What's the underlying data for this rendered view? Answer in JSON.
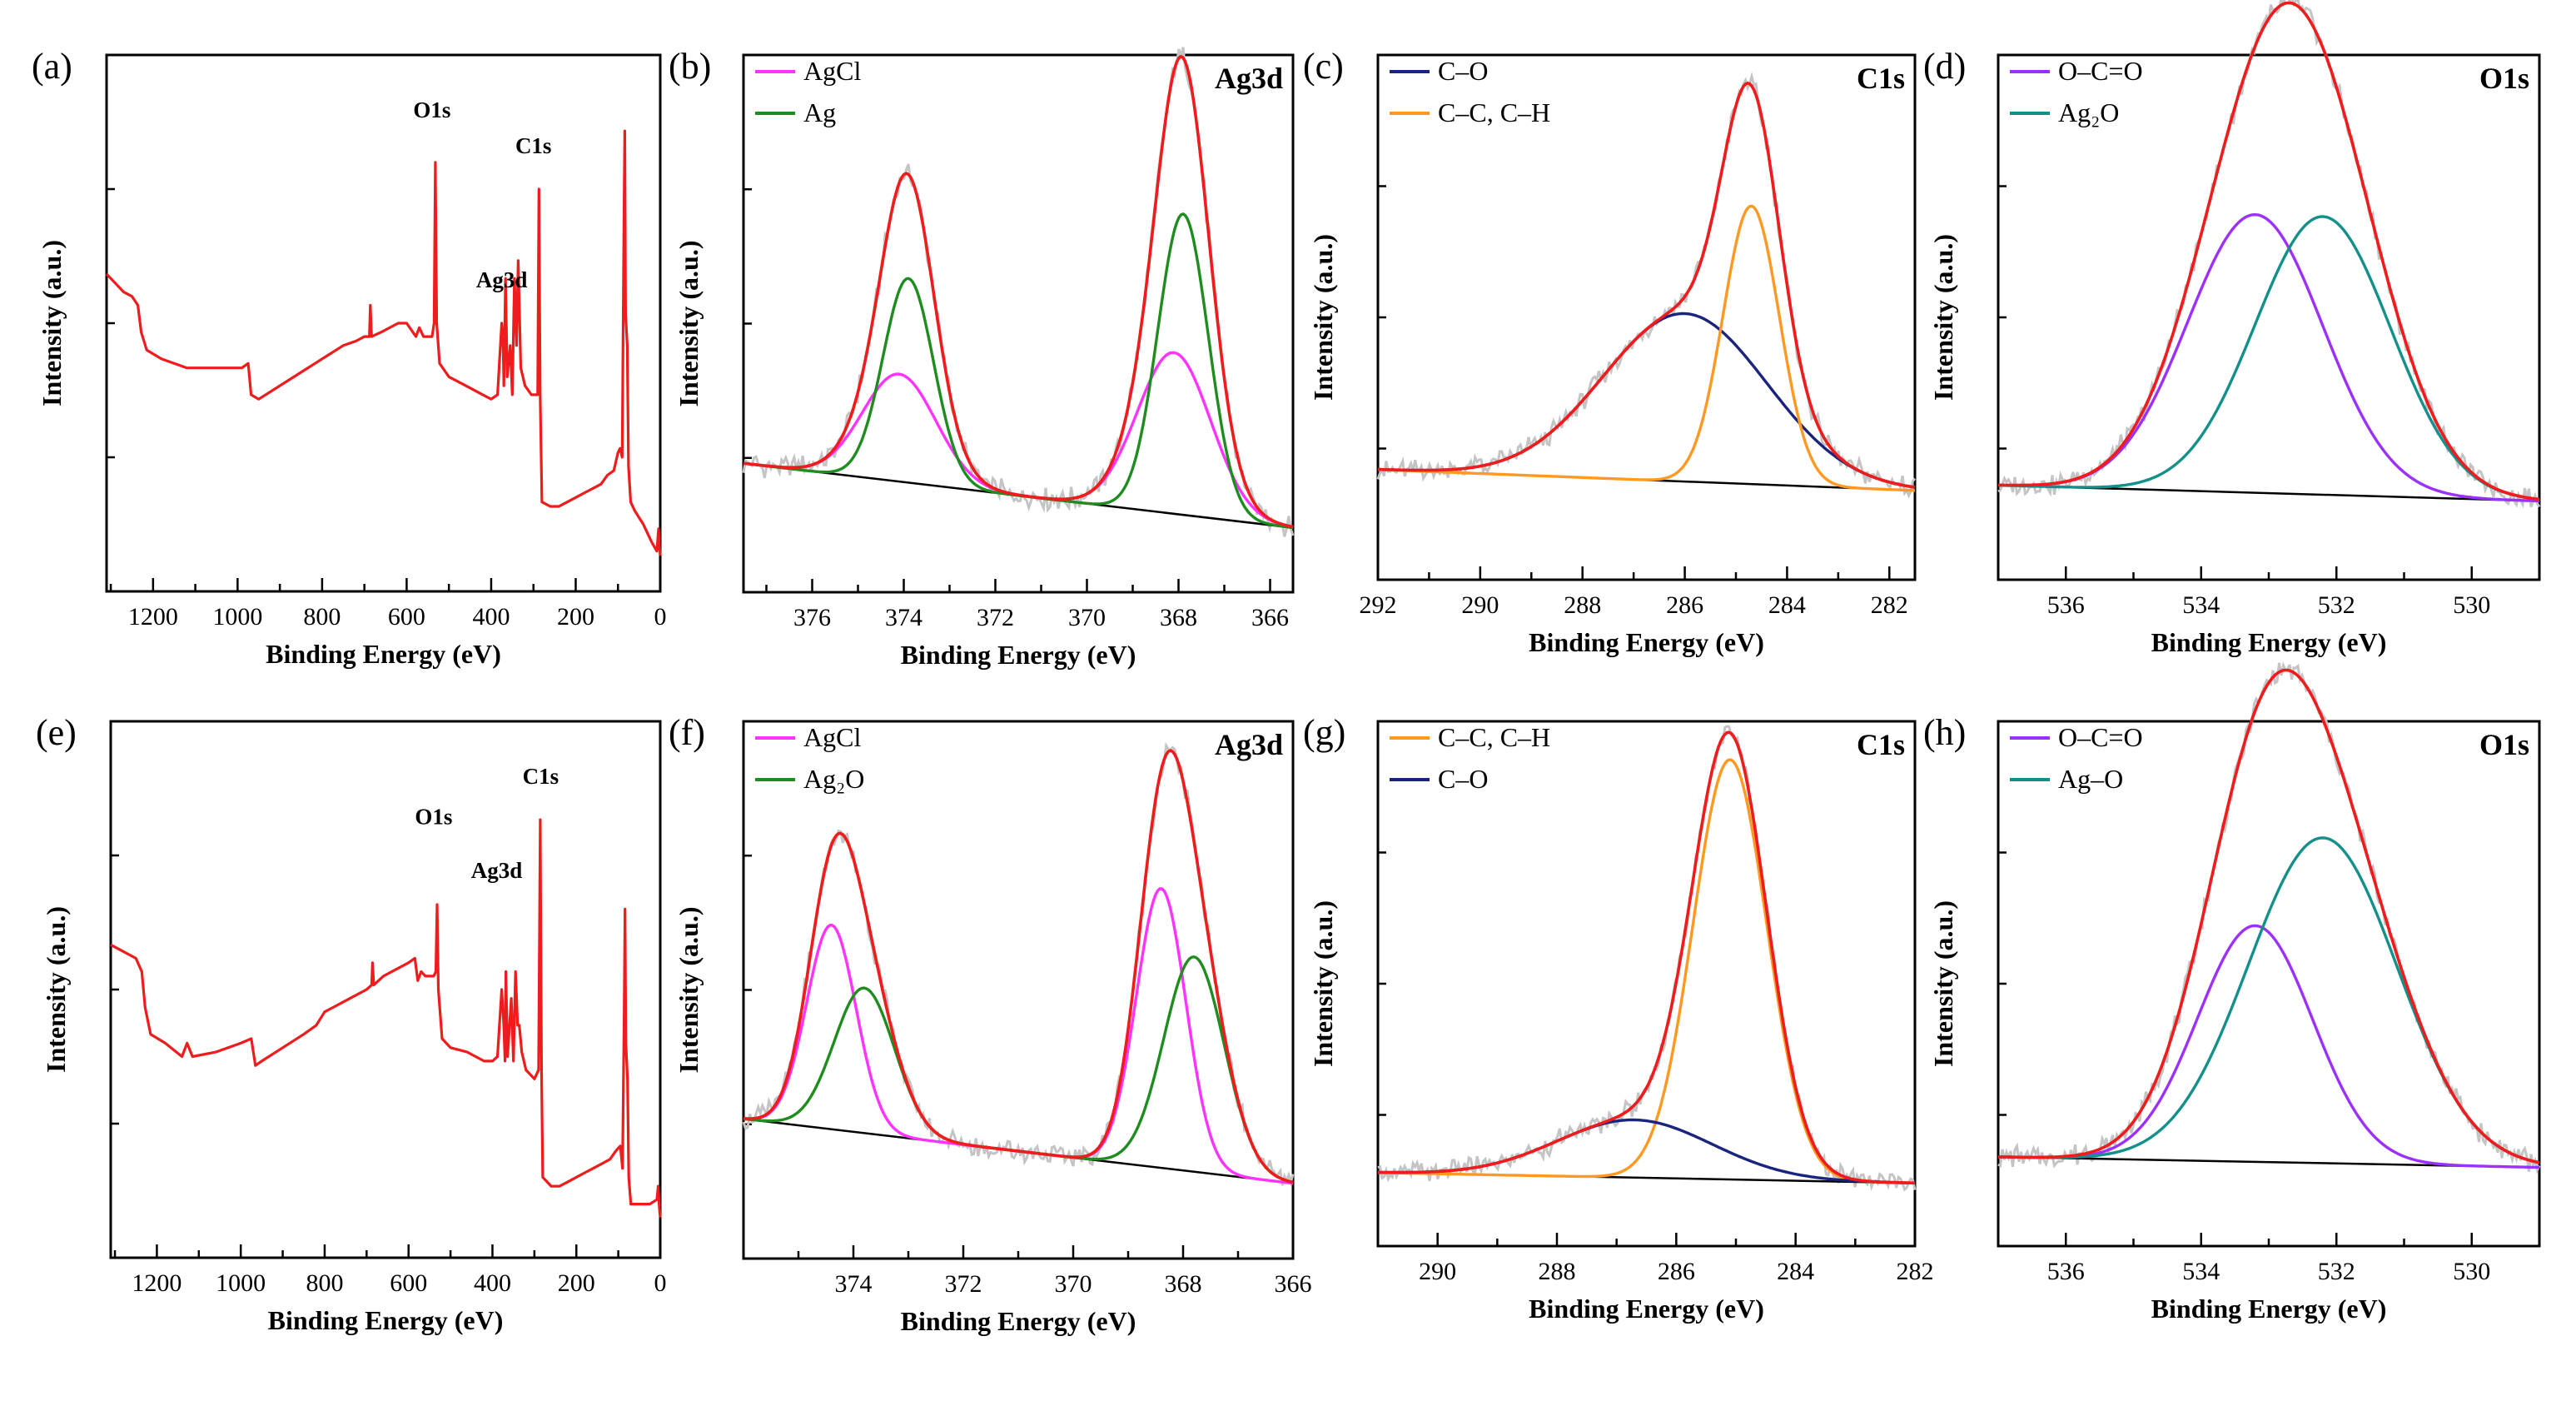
{
  "figure": {
    "background": "#ffffff",
    "colors": {
      "envelope": "#ee1c1c",
      "raw": "#c4c4c4",
      "baseline": "#000000",
      "survey": "#ee1c1c",
      "magenta": "#ff33ff",
      "green": "#1e8c1e",
      "navy": "#1a237e",
      "orange": "#ff9922",
      "violet": "#9b30ff",
      "teal": "#14908a"
    }
  },
  "chart_data": [
    {
      "id": "a",
      "type": "line",
      "letter": "(a)",
      "title": "",
      "xlabel": "Binding Energy (eV)",
      "ylabel": "Intensity (a.u.)",
      "xlim": [
        1310,
        0
      ],
      "ylim": [
        0,
        120
      ],
      "xticks": [
        1200,
        1000,
        800,
        600,
        400,
        200,
        0
      ],
      "annotations": [
        {
          "text": "O1s",
          "x": 540,
          "y": 106
        },
        {
          "text": "C1s",
          "x": 300,
          "y": 98
        },
        {
          "text": "Ag3d",
          "x": 375,
          "y": 68
        }
      ],
      "survey": [
        [
          1310,
          71
        ],
        [
          1290,
          69
        ],
        [
          1270,
          67
        ],
        [
          1250,
          66
        ],
        [
          1236,
          64
        ],
        [
          1228,
          58
        ],
        [
          1215,
          54
        ],
        [
          1180,
          52
        ],
        [
          1120,
          50
        ],
        [
          1050,
          50
        ],
        [
          990,
          50
        ],
        [
          975,
          51
        ],
        [
          968,
          44
        ],
        [
          950,
          43
        ],
        [
          900,
          46
        ],
        [
          850,
          49
        ],
        [
          800,
          52
        ],
        [
          750,
          55
        ],
        [
          720,
          56
        ],
        [
          700,
          57
        ],
        [
          688,
          57
        ],
        [
          686,
          64
        ],
        [
          683,
          57
        ],
        [
          660,
          58
        ],
        [
          620,
          60
        ],
        [
          600,
          60
        ],
        [
          578,
          57
        ],
        [
          570,
          59
        ],
        [
          560,
          57
        ],
        [
          545,
          57
        ],
        [
          540,
          57
        ],
        [
          535,
          60
        ],
        [
          532,
          96
        ],
        [
          529,
          60
        ],
        [
          522,
          51
        ],
        [
          500,
          48
        ],
        [
          460,
          46
        ],
        [
          420,
          44
        ],
        [
          400,
          43
        ],
        [
          385,
          44
        ],
        [
          375,
          60
        ],
        [
          372,
          56
        ],
        [
          370,
          46
        ],
        [
          366,
          70
        ],
        [
          362,
          48
        ],
        [
          355,
          55
        ],
        [
          350,
          44
        ],
        [
          345,
          70
        ],
        [
          340,
          55
        ],
        [
          336,
          74
        ],
        [
          330,
          50
        ],
        [
          320,
          46
        ],
        [
          305,
          44
        ],
        [
          290,
          44
        ],
        [
          287,
          90
        ],
        [
          284,
          44
        ],
        [
          280,
          20
        ],
        [
          260,
          19
        ],
        [
          240,
          19
        ],
        [
          220,
          20
        ],
        [
          200,
          21
        ],
        [
          180,
          22
        ],
        [
          160,
          23
        ],
        [
          140,
          24
        ],
        [
          125,
          26
        ],
        [
          110,
          27
        ],
        [
          100,
          31
        ],
        [
          95,
          32
        ],
        [
          90,
          30
        ],
        [
          86,
          80
        ],
        [
          84,
          103
        ],
        [
          82,
          62
        ],
        [
          78,
          55
        ],
        [
          75,
          28
        ],
        [
          70,
          20
        ],
        [
          60,
          18
        ],
        [
          40,
          15
        ],
        [
          20,
          11
        ],
        [
          8,
          9
        ],
        [
          4,
          14
        ],
        [
          2,
          10
        ],
        [
          0,
          8
        ]
      ],
      "components": [],
      "series": []
    },
    {
      "id": "b",
      "type": "line",
      "letter": "(b)",
      "title": "Ag3d",
      "xlabel": "Binding Energy (eV)",
      "ylabel": "Intensity (a.u.)",
      "xlim": [
        377.5,
        365.5
      ],
      "ylim": [
        0,
        100
      ],
      "xticks": [
        376,
        374,
        372,
        370,
        368,
        366
      ],
      "annotations": [],
      "baseline": [
        [
          377.5,
          24
        ],
        [
          365.5,
          12
        ]
      ],
      "components": [
        {
          "name": "AgCl",
          "color": "magenta",
          "peaks": [
            {
              "c": 374.1,
              "h": 20,
              "w": 0.8
            },
            {
              "c": 368.1,
              "h": 30,
              "w": 0.8
            }
          ]
        },
        {
          "name": "Ag",
          "color": "green",
          "peaks": [
            {
              "c": 373.9,
              "h": 38,
              "w": 0.55
            },
            {
              "c": 367.9,
              "h": 56,
              "w": 0.55
            }
          ]
        }
      ],
      "series": [
        {
          "name": "AgCl",
          "legend": true
        },
        {
          "name": "Ag",
          "legend": true
        }
      ]
    },
    {
      "id": "c",
      "type": "line",
      "letter": "(c)",
      "title": "C1s",
      "xlabel": "Binding Energy (eV)",
      "ylabel": "Intensity (a.u.)",
      "xlim": [
        292,
        281.5
      ],
      "ylim": [
        0,
        100
      ],
      "xticks": [
        292,
        290,
        288,
        286,
        284,
        282
      ],
      "annotations": [],
      "baseline": [
        [
          292,
          21
        ],
        [
          281.5,
          17
        ]
      ],
      "components": [
        {
          "name": "C–O",
          "color": "navy",
          "peaks": [
            {
              "c": 286.0,
              "h": 32,
              "w": 1.6
            }
          ]
        },
        {
          "name": "C–C, C–H",
          "color": "orange",
          "peaks": [
            {
              "c": 284.7,
              "h": 53,
              "w": 0.55
            }
          ]
        }
      ],
      "series": [
        {
          "name": "C–O",
          "legend": true
        },
        {
          "name": "C–C, C–H",
          "legend": true
        }
      ]
    },
    {
      "id": "d",
      "type": "line",
      "letter": "(d)",
      "title": "O1s",
      "xlabel": "Binding Energy (eV)",
      "ylabel": "Intensity (a.u.)",
      "xlim": [
        537,
        529
      ],
      "ylim": [
        0,
        100
      ],
      "xticks": [
        536,
        534,
        532,
        530
      ],
      "annotations": [],
      "baseline": [
        [
          537,
          18
        ],
        [
          529,
          15
        ]
      ],
      "components": [
        {
          "name": "O–C=O",
          "color": "violet",
          "peaks": [
            {
              "c": 533.2,
              "h": 53,
              "w": 1.0
            }
          ]
        },
        {
          "name": "Ag₂O",
          "color": "teal",
          "peaks": [
            {
              "c": 532.2,
              "h": 53,
              "w": 1.0
            }
          ]
        }
      ],
      "series": [
        {
          "name": "O–C=O",
          "legend": true
        },
        {
          "name": "Ag₂O",
          "legend": true
        }
      ]
    },
    {
      "id": "e",
      "type": "line",
      "letter": "(e)",
      "title": "",
      "xlabel": "Binding Energy (eV)",
      "ylabel": "Intensity (a.u.)",
      "xlim": [
        1310,
        0
      ],
      "ylim": [
        0,
        120
      ],
      "xticks": [
        1200,
        1000,
        800,
        600,
        400,
        200,
        0
      ],
      "annotations": [
        {
          "text": "O1s",
          "x": 540,
          "y": 97
        },
        {
          "text": "C1s",
          "x": 285,
          "y": 106
        },
        {
          "text": "Ag3d",
          "x": 390,
          "y": 85
        }
      ],
      "survey": [
        [
          1310,
          70
        ],
        [
          1290,
          69
        ],
        [
          1270,
          68
        ],
        [
          1250,
          67
        ],
        [
          1236,
          64
        ],
        [
          1228,
          56
        ],
        [
          1215,
          50
        ],
        [
          1180,
          48
        ],
        [
          1140,
          45
        ],
        [
          1128,
          48
        ],
        [
          1115,
          45
        ],
        [
          1060,
          46
        ],
        [
          1000,
          48
        ],
        [
          975,
          49
        ],
        [
          965,
          43
        ],
        [
          950,
          44
        ],
        [
          900,
          47
        ],
        [
          850,
          50
        ],
        [
          820,
          52
        ],
        [
          800,
          55
        ],
        [
          780,
          56
        ],
        [
          740,
          58
        ],
        [
          700,
          60
        ],
        [
          688,
          61
        ],
        [
          686,
          66
        ],
        [
          683,
          61
        ],
        [
          660,
          63
        ],
        [
          620,
          65
        ],
        [
          600,
          66
        ],
        [
          585,
          67
        ],
        [
          578,
          62
        ],
        [
          570,
          64
        ],
        [
          560,
          63
        ],
        [
          545,
          63
        ],
        [
          540,
          63
        ],
        [
          535,
          64
        ],
        [
          532,
          79
        ],
        [
          529,
          60
        ],
        [
          520,
          49
        ],
        [
          500,
          47
        ],
        [
          460,
          46
        ],
        [
          420,
          44
        ],
        [
          400,
          44
        ],
        [
          388,
          45
        ],
        [
          378,
          60
        ],
        [
          373,
          52
        ],
        [
          370,
          44
        ],
        [
          368,
          64
        ],
        [
          364,
          45
        ],
        [
          355,
          58
        ],
        [
          350,
          44
        ],
        [
          345,
          64
        ],
        [
          340,
          52
        ],
        [
          336,
          52
        ],
        [
          330,
          46
        ],
        [
          320,
          42
        ],
        [
          300,
          40
        ],
        [
          290,
          42
        ],
        [
          286,
          98
        ],
        [
          283,
          42
        ],
        [
          280,
          18
        ],
        [
          260,
          16
        ],
        [
          240,
          16
        ],
        [
          220,
          17
        ],
        [
          200,
          18
        ],
        [
          180,
          19
        ],
        [
          160,
          20
        ],
        [
          140,
          21
        ],
        [
          120,
          22
        ],
        [
          105,
          24
        ],
        [
          95,
          25
        ],
        [
          90,
          20
        ],
        [
          86,
          55
        ],
        [
          84,
          78
        ],
        [
          82,
          48
        ],
        [
          78,
          40
        ],
        [
          75,
          18
        ],
        [
          70,
          12
        ],
        [
          55,
          12
        ],
        [
          40,
          12
        ],
        [
          25,
          12
        ],
        [
          8,
          13
        ],
        [
          5,
          16
        ],
        [
          2,
          11
        ],
        [
          0,
          9
        ]
      ],
      "components": [],
      "series": []
    },
    {
      "id": "f",
      "type": "line",
      "letter": "(f)",
      "title": "Ag3d",
      "xlabel": "Binding Energy (eV)",
      "ylabel": "Intensity (a.u.)",
      "xlim": [
        376,
        366
      ],
      "ylim": [
        0,
        100
      ],
      "xticks": [
        374,
        372,
        370,
        368,
        366
      ],
      "annotations": [],
      "baseline": [
        [
          376,
          26
        ],
        [
          366,
          14
        ]
      ],
      "components": [
        {
          "name": "AgCl",
          "color": "magenta",
          "peaks": [
            {
              "c": 374.4,
              "h": 38,
              "w": 0.45
            },
            {
              "c": 368.4,
              "h": 52,
              "w": 0.45
            }
          ]
        },
        {
          "name": "Ag₂O",
          "color": "green",
          "peaks": [
            {
              "c": 373.8,
              "h": 27,
              "w": 0.55
            },
            {
              "c": 367.8,
              "h": 40,
              "w": 0.55
            }
          ]
        }
      ],
      "series": [
        {
          "name": "AgCl",
          "legend": true
        },
        {
          "name": "Ag₂O",
          "legend": true
        }
      ]
    },
    {
      "id": "g",
      "type": "line",
      "letter": "(g)",
      "title": "C1s",
      "xlabel": "Binding Energy (eV)",
      "ylabel": "Intensity (a.u.)",
      "xlim": [
        291,
        282
      ],
      "ylim": [
        0,
        100
      ],
      "xticks": [
        290,
        288,
        286,
        284,
        282
      ],
      "annotations": [],
      "baseline": [
        [
          291,
          14
        ],
        [
          282,
          12
        ]
      ],
      "components": [
        {
          "name": "C–C, C–H",
          "color": "orange",
          "peaks": [
            {
              "c": 285.1,
              "h": 80,
              "w": 0.62
            }
          ]
        },
        {
          "name": "C–O",
          "color": "navy",
          "peaks": [
            {
              "c": 286.7,
              "h": 11,
              "w": 1.3
            }
          ]
        }
      ],
      "series": [
        {
          "name": "C–C, C–H",
          "legend": true
        },
        {
          "name": "C–O",
          "legend": true
        }
      ]
    },
    {
      "id": "h",
      "type": "line",
      "letter": "(h)",
      "title": "O1s",
      "xlabel": "Binding Energy (eV)",
      "ylabel": "Intensity (a.u.)",
      "xlim": [
        537,
        529
      ],
      "ylim": [
        0,
        100
      ],
      "xticks": [
        536,
        534,
        532,
        530
      ],
      "annotations": [],
      "baseline": [
        [
          537,
          17
        ],
        [
          529,
          15
        ]
      ],
      "components": [
        {
          "name": "O–C=O",
          "color": "violet",
          "peaks": [
            {
              "c": 533.2,
              "h": 45,
              "w": 0.85
            }
          ]
        },
        {
          "name": "Ag–O",
          "color": "teal",
          "peaks": [
            {
              "c": 532.2,
              "h": 62,
              "w": 1.1
            }
          ]
        }
      ],
      "series": [
        {
          "name": "O–C=O",
          "legend": true
        },
        {
          "name": "Ag–O",
          "legend": true
        }
      ]
    }
  ]
}
